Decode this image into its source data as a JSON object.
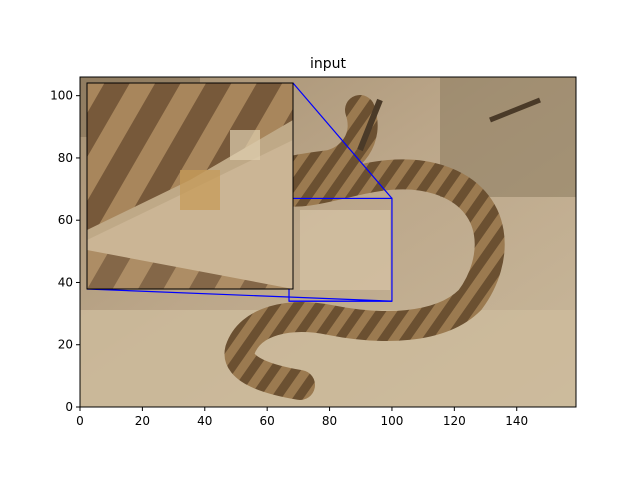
{
  "chart_data": {
    "type": "image",
    "title": "input",
    "xlabel": "",
    "ylabel": "",
    "xlim": [
      0,
      159
    ],
    "ylim": [
      0,
      106
    ],
    "x_ticks": [
      0,
      20,
      40,
      60,
      80,
      100,
      120,
      140
    ],
    "y_ticks": [
      0,
      20,
      40,
      60,
      80,
      100
    ],
    "image_content": "pixelated photo of a rattlesnake coiled on rocks",
    "zoom_inset": {
      "source_region": {
        "x": [
          67,
          100
        ],
        "y": [
          34,
          67
        ]
      },
      "indicator_color": "#0000ff"
    }
  }
}
